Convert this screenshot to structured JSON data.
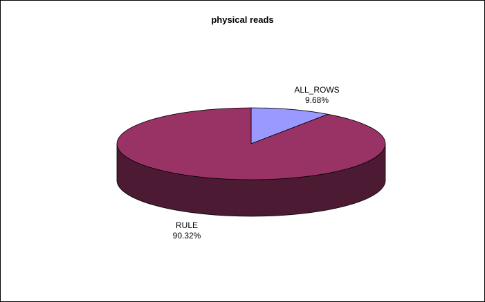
{
  "chart_data": {
    "type": "pie",
    "title": "physical reads",
    "style": "3d",
    "slices": [
      {
        "name": "ALL_ROWS",
        "percent_label": "9.68%",
        "value": 9.68,
        "color": "#9999ff",
        "side_color": "#4d4d80"
      },
      {
        "name": "RULE",
        "percent_label": "90.32%",
        "value": 90.32,
        "color": "#993366",
        "side_color": "#4d1a33"
      }
    ],
    "legend": "none"
  }
}
